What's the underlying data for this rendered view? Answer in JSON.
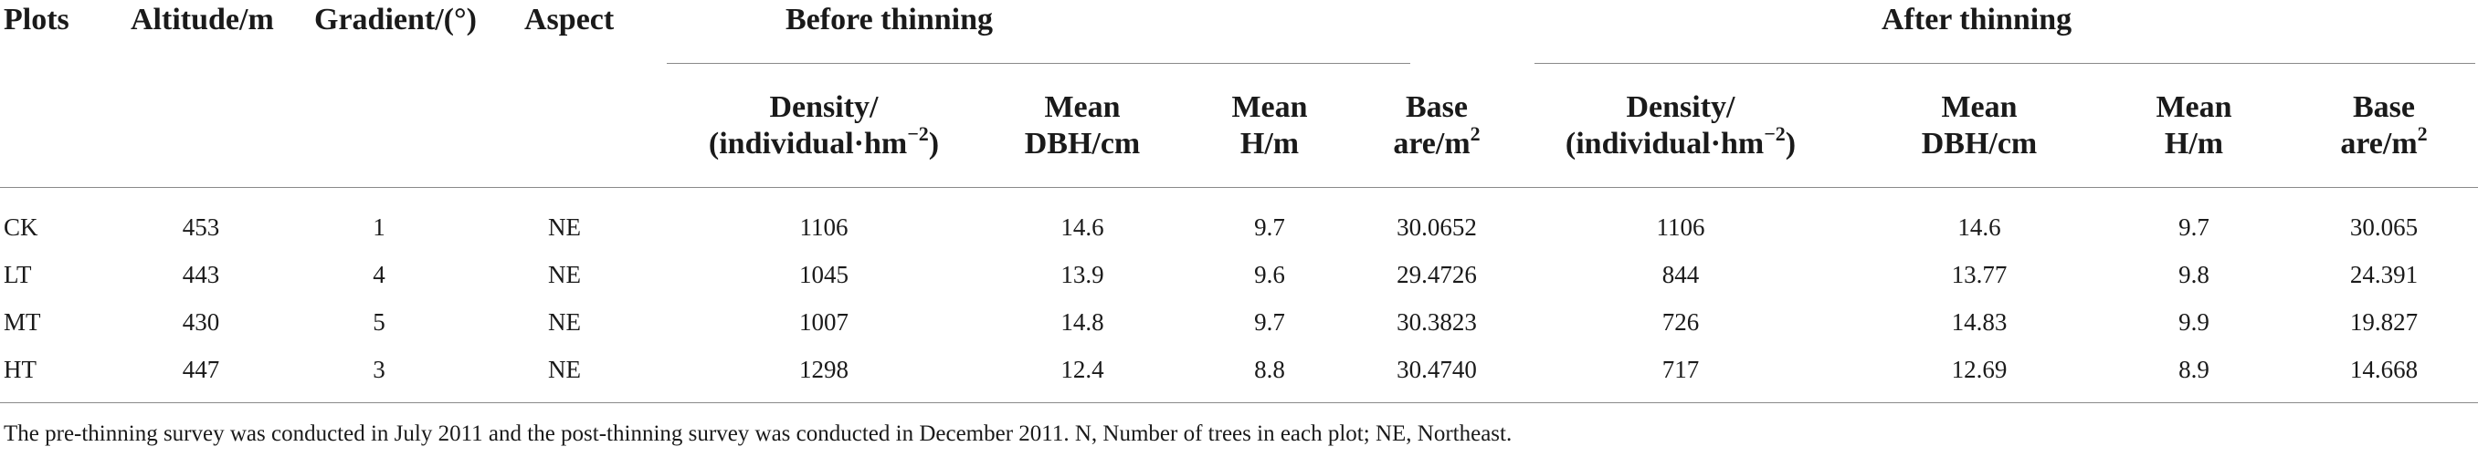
{
  "table": {
    "headers": {
      "plots": "Plots",
      "altitude": "Altitude/m",
      "gradient": "Gradient/(°)",
      "aspect": "Aspect",
      "before_group": "Before thinning",
      "after_group": "After thinning",
      "density_line1": "Density/",
      "density_line2": "(individual·hm",
      "density_exp": "−2",
      "density_close": ")",
      "mean_dbh_line1": "Mean",
      "mean_dbh_line2": "DBH/cm",
      "mean_h_line1": "Mean",
      "mean_h_line2": "H/m",
      "base_line1": "Base",
      "base_line2": "are/m",
      "base_exp": "2"
    },
    "rows": [
      {
        "plot": "CK",
        "altitude": "453",
        "gradient": "1",
        "aspect": "NE",
        "before": {
          "density": "1106",
          "dbh": "14.6",
          "h": "9.7",
          "base": "30.0652"
        },
        "after": {
          "density": "1106",
          "dbh": "14.6",
          "h": "9.7",
          "base": "30.065"
        }
      },
      {
        "plot": "LT",
        "altitude": "443",
        "gradient": "4",
        "aspect": "NE",
        "before": {
          "density": "1045",
          "dbh": "13.9",
          "h": "9.6",
          "base": "29.4726"
        },
        "after": {
          "density": "844",
          "dbh": "13.77",
          "h": "9.8",
          "base": "24.391"
        }
      },
      {
        "plot": "MT",
        "altitude": "430",
        "gradient": "5",
        "aspect": "NE",
        "before": {
          "density": "1007",
          "dbh": "14.8",
          "h": "9.7",
          "base": "30.3823"
        },
        "after": {
          "density": "726",
          "dbh": "14.83",
          "h": "9.9",
          "base": "19.827"
        }
      },
      {
        "plot": "HT",
        "altitude": "447",
        "gradient": "3",
        "aspect": "NE",
        "before": {
          "density": "1298",
          "dbh": "12.4",
          "h": "8.8",
          "base": "30.4740"
        },
        "after": {
          "density": "717",
          "dbh": "12.69",
          "h": "8.9",
          "base": "14.668"
        }
      }
    ]
  },
  "footnote": "The pre-thinning survey was conducted in July 2011 and the post-thinning survey was conducted in December 2011. N, Number of trees in each plot; NE, Northeast."
}
